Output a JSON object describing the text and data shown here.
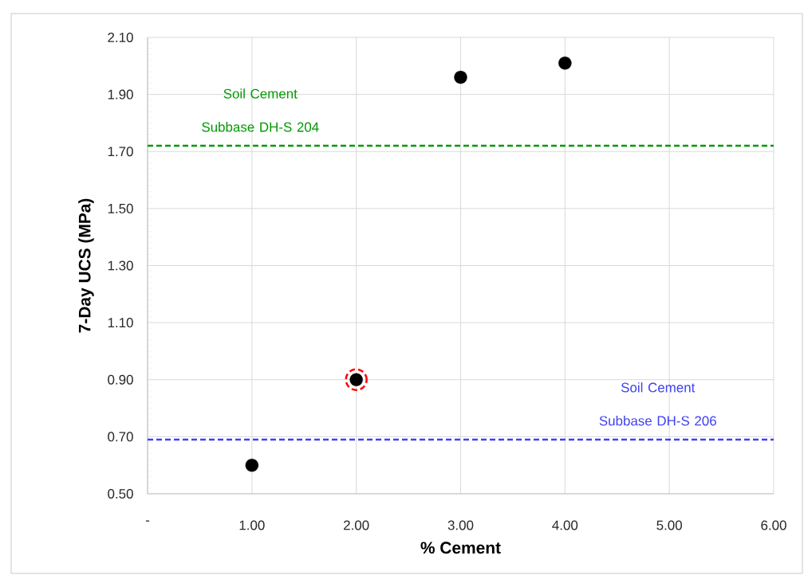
{
  "chart_data": {
    "type": "scatter",
    "xlabel": "% Cement",
    "ylabel": "7-Day UCS (MPa)",
    "x": [
      1,
      2,
      3,
      4
    ],
    "series": [
      {
        "color": "#000000",
        "values": [
          0.6,
          0.9,
          1.96,
          2.01
        ]
      },
      {
        "type": "scatter",
        "x": [
          2
        ],
        "color": "#ff0000",
        "values": [
          0.9
        ],
        "line_style": "dashed"
      }
    ],
    "xlim": [
      0,
      6
    ],
    "xticks": [
      {
        "value": 0,
        "label": "-"
      },
      {
        "value": 1,
        "label": "1.00"
      },
      {
        "value": 2,
        "label": "2.00"
      },
      {
        "value": 3,
        "label": "3.00"
      },
      {
        "value": 4,
        "label": "4.00"
      },
      {
        "value": 5,
        "label": "5.00"
      },
      {
        "value": 6,
        "label": "6.00"
      }
    ],
    "ylim": [
      0.5,
      2.1
    ],
    "yticks": [
      {
        "value": 0.5,
        "label": "0.50"
      },
      {
        "value": 0.7,
        "label": "0.70"
      },
      {
        "value": 0.9,
        "label": "0.90"
      },
      {
        "value": 1.1,
        "label": "1.10"
      },
      {
        "value": 1.3,
        "label": "1.30"
      },
      {
        "value": 1.5,
        "label": "1.50"
      },
      {
        "value": 1.7,
        "label": "1.70"
      },
      {
        "value": 1.9,
        "label": "1.90"
      },
      {
        "value": 2.1,
        "label": "2.10"
      }
    ],
    "ref_lines": [
      {
        "axis": "y",
        "value": 1.72,
        "label": "Soil Cement Subbase DH-S 204",
        "color": "#009900",
        "line_style": "dashed"
      },
      {
        "axis": "y",
        "value": 0.69,
        "label": "Soil Cement Subbase DH-S 206",
        "color": "#4040f0",
        "line_style": "dashed"
      }
    ],
    "grid": true,
    "marker": "circle"
  }
}
